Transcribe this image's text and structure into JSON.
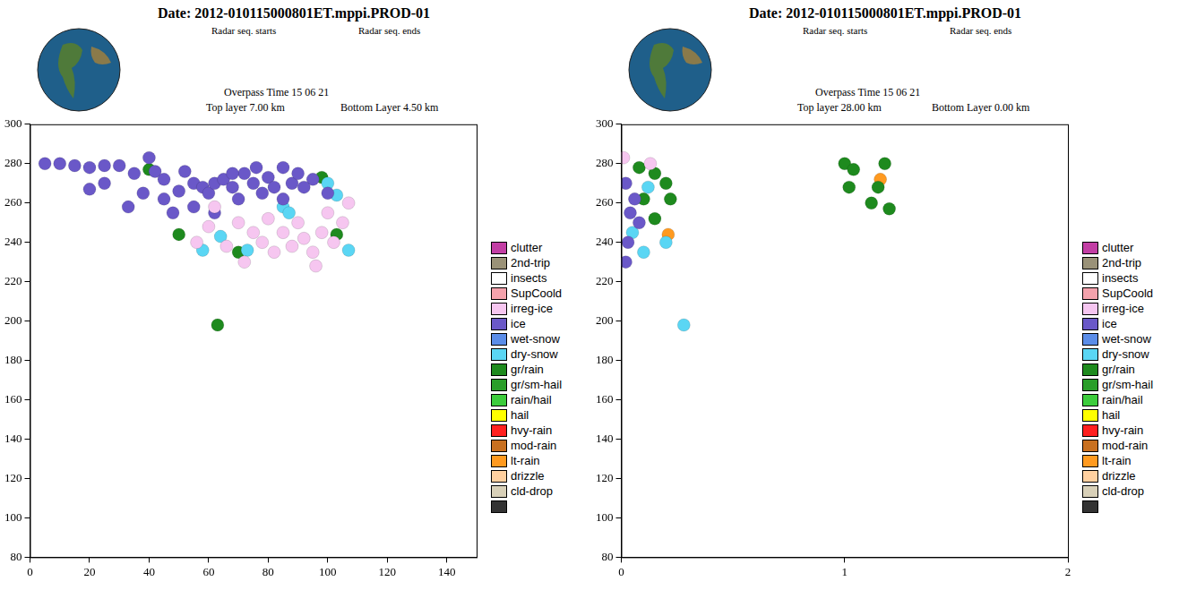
{
  "chart_data": [
    {
      "type": "scatter",
      "title": "Date: 2012-010115000801ET.mppi.PROD-01",
      "subtitle": [
        "Radar seq. starts",
        "Radar seq. ends"
      ],
      "annotations": [
        "Overpass Time 15 06 21",
        "Top layer 7.00 km",
        "Bottom Layer 4.50 km"
      ],
      "xlim": [
        0,
        150
      ],
      "xticks": [
        0,
        20,
        40,
        60,
        80,
        100,
        120,
        140
      ],
      "ylim": [
        80,
        300
      ],
      "yticks": [
        80,
        100,
        120,
        140,
        160,
        180,
        200,
        220,
        240,
        260,
        280,
        300
      ],
      "grid": false,
      "legend": "right",
      "marker": "circle",
      "series": [
        {
          "name": "clutter",
          "color": "#c23ea4",
          "x": [],
          "y": []
        },
        {
          "name": "2nd-trip",
          "color": "#9a9278",
          "x": [],
          "y": []
        },
        {
          "name": "insects",
          "color": "#ffffff",
          "x": [],
          "y": []
        },
        {
          "name": "SupCoold",
          "color": "#f4a2ac",
          "x": [],
          "y": []
        },
        {
          "name": "irreg-ice",
          "color": "#f6c6f0",
          "x": [
            62,
            70,
            75,
            78,
            80,
            85,
            88,
            90,
            92,
            95,
            98,
            100,
            102,
            105,
            107,
            72,
            96,
            82,
            66,
            56,
            60
          ],
          "y": [
            258,
            250,
            245,
            240,
            252,
            245,
            238,
            250,
            242,
            235,
            245,
            255,
            240,
            250,
            260,
            230,
            228,
            235,
            238,
            240,
            248
          ]
        },
        {
          "name": "ice",
          "color": "#6a58c8",
          "x": [
            5,
            10,
            15,
            20,
            25,
            30,
            35,
            40,
            42,
            45,
            50,
            52,
            55,
            58,
            60,
            62,
            65,
            68,
            70,
            72,
            75,
            78,
            80,
            82,
            85,
            88,
            90,
            95,
            100,
            20,
            25,
            33,
            48,
            55,
            62,
            45,
            38,
            68,
            76,
            85,
            92
          ],
          "y": [
            280,
            280,
            279,
            278,
            279,
            279,
            275,
            283,
            276,
            272,
            266,
            276,
            270,
            268,
            265,
            270,
            272,
            268,
            262,
            275,
            270,
            265,
            273,
            268,
            262,
            270,
            275,
            272,
            265,
            267,
            270,
            258,
            255,
            258,
            255,
            262,
            265,
            275,
            278,
            278,
            268
          ]
        },
        {
          "name": "wet-snow",
          "color": "#5b8de8",
          "x": [],
          "y": []
        },
        {
          "name": "dry-snow",
          "color": "#5ad6f4",
          "x": [
            58,
            64,
            73,
            85,
            100,
            103,
            107,
            87
          ],
          "y": [
            236,
            243,
            236,
            258,
            270,
            264,
            236,
            255
          ]
        },
        {
          "name": "gr/rain",
          "color": "#1e8a1e",
          "x": [
            63,
            50,
            98,
            103,
            40,
            70
          ],
          "y": [
            198,
            244,
            273,
            244,
            277,
            235
          ]
        },
        {
          "name": "gr/sm-hail",
          "color": "#2a9e2a",
          "x": [],
          "y": []
        },
        {
          "name": "rain/hail",
          "color": "#3ccc3c",
          "x": [],
          "y": []
        },
        {
          "name": "hail",
          "color": "#ffff00",
          "x": [],
          "y": []
        },
        {
          "name": "hvy-rain",
          "color": "#ff2020",
          "x": [],
          "y": []
        },
        {
          "name": "mod-rain",
          "color": "#c87020",
          "x": [],
          "y": []
        },
        {
          "name": "lt-rain",
          "color": "#ff9a20",
          "x": [],
          "y": []
        },
        {
          "name": "drizzle",
          "color": "#ffd0a0",
          "x": [],
          "y": []
        },
        {
          "name": "cld-drop",
          "color": "#d8d0b8",
          "x": [],
          "y": []
        },
        {
          "name": null,
          "color": "#333333",
          "x": [],
          "y": []
        }
      ]
    },
    {
      "type": "scatter",
      "title": "Date: 2012-010115000801ET.mppi.PROD-01",
      "subtitle": [
        "Radar seq. starts",
        "Radar seq. ends"
      ],
      "annotations": [
        "Overpass Time 15 06 21",
        "Top layer 28.00 km",
        "Bottom Layer 0.00 km"
      ],
      "xlim": [
        0,
        2
      ],
      "xticks": [
        0,
        1,
        2
      ],
      "ylim": [
        80,
        300
      ],
      "yticks": [
        80,
        100,
        120,
        140,
        160,
        180,
        200,
        220,
        240,
        260,
        280,
        300
      ],
      "grid": false,
      "legend": "right",
      "marker": "circle",
      "series": [
        {
          "name": "clutter",
          "color": "#c23ea4",
          "x": [],
          "y": []
        },
        {
          "name": "2nd-trip",
          "color": "#9a9278",
          "x": [],
          "y": []
        },
        {
          "name": "insects",
          "color": "#ffffff",
          "x": [],
          "y": []
        },
        {
          "name": "SupCoold",
          "color": "#f4a2ac",
          "x": [],
          "y": []
        },
        {
          "name": "irreg-ice",
          "color": "#f6c6f0",
          "x": [
            0.01,
            0.13
          ],
          "y": [
            283,
            280
          ]
        },
        {
          "name": "ice",
          "color": "#6a58c8",
          "x": [
            0.02,
            0.04,
            0.03,
            0.06,
            0.02,
            0.08
          ],
          "y": [
            270,
            255,
            240,
            262,
            230,
            250
          ]
        },
        {
          "name": "wet-snow",
          "color": "#5b8de8",
          "x": [],
          "y": []
        },
        {
          "name": "dry-snow",
          "color": "#5ad6f4",
          "x": [
            0.05,
            0.1,
            0.28,
            0.2,
            0.12
          ],
          "y": [
            245,
            235,
            198,
            240,
            268
          ]
        },
        {
          "name": "gr/rain",
          "color": "#1e8a1e",
          "x": [
            0.1,
            0.15,
            0.2,
            0.22,
            0.15,
            1.0,
            1.04,
            1.18,
            1.15,
            1.12,
            1.2,
            1.02,
            0.08
          ],
          "y": [
            262,
            275,
            270,
            262,
            252,
            280,
            277,
            280,
            268,
            260,
            257,
            268,
            278
          ]
        },
        {
          "name": "gr/sm-hail",
          "color": "#2a9e2a",
          "x": [],
          "y": []
        },
        {
          "name": "rain/hail",
          "color": "#3ccc3c",
          "x": [],
          "y": []
        },
        {
          "name": "hail",
          "color": "#ffff00",
          "x": [],
          "y": []
        },
        {
          "name": "hvy-rain",
          "color": "#ff2020",
          "x": [],
          "y": []
        },
        {
          "name": "mod-rain",
          "color": "#c87020",
          "x": [],
          "y": []
        },
        {
          "name": "lt-rain",
          "color": "#ff9a20",
          "x": [
            0.21,
            1.16
          ],
          "y": [
            244,
            272
          ]
        },
        {
          "name": "drizzle",
          "color": "#ffd0a0",
          "x": [],
          "y": []
        },
        {
          "name": "cld-drop",
          "color": "#d8d0b8",
          "x": [],
          "y": []
        },
        {
          "name": null,
          "color": "#333333",
          "x": [],
          "y": []
        }
      ]
    }
  ]
}
